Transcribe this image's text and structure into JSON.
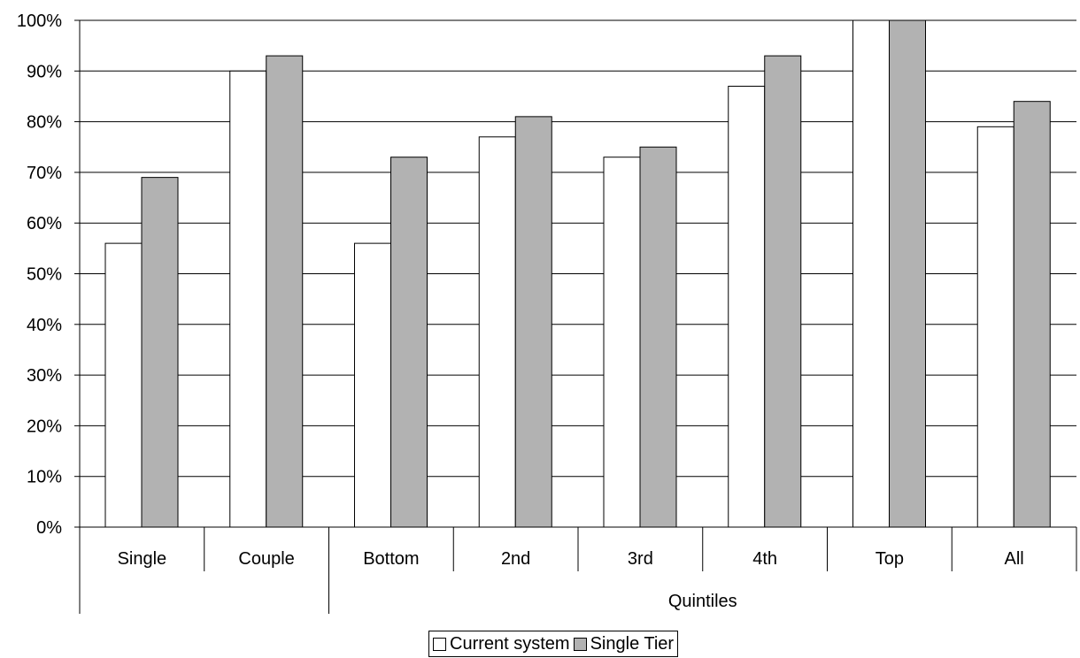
{
  "chart_data": {
    "type": "bar",
    "categories": [
      "Single",
      "Couple",
      "Bottom",
      "2nd",
      "3rd",
      "4th",
      "Top",
      "All"
    ],
    "group_labels": [
      {
        "label": "",
        "from": 0,
        "to": 1
      },
      {
        "label": "Quintiles",
        "from": 2,
        "to": 7
      }
    ],
    "series": [
      {
        "name": "Current system",
        "values": [
          56,
          90,
          56,
          77,
          73,
          87,
          100,
          79
        ],
        "color": "#ffffff"
      },
      {
        "name": "Single Tier",
        "values": [
          69,
          93,
          73,
          81,
          75,
          93,
          100,
          84
        ],
        "color": "#b2b2b2"
      }
    ],
    "yticks": [
      "0%",
      "10%",
      "20%",
      "30%",
      "40%",
      "50%",
      "60%",
      "70%",
      "80%",
      "90%",
      "100%"
    ],
    "ylim": [
      0,
      100
    ],
    "grid": true,
    "legend_position": "bottom",
    "title": "",
    "xlabel": "",
    "ylabel": ""
  }
}
